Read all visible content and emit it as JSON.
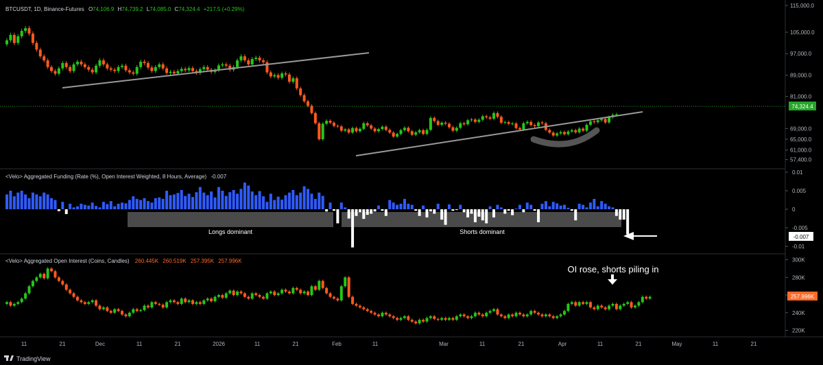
{
  "colors": {
    "background": "#000000",
    "up": "#22ab94",
    "up_bright": "#26c61a",
    "down": "#ff5a1f",
    "funding_pos": "#2f5bff",
    "funding_neg": "#ffffff",
    "axis_text": "#b2b5be",
    "grid": "#2a2a2a",
    "price_tag": "#26a629",
    "oi_tag": "#ff6a2a"
  },
  "footer": {
    "brand": "TradingView",
    "logo_icon": "tradingview-logo"
  },
  "x_axis": {
    "ticks": [
      "11",
      "21",
      "Dec",
      "11",
      "21",
      "2026",
      "11",
      "21",
      "Feb",
      "11",
      "Mar",
      "11",
      "21",
      "Apr",
      "11",
      "21",
      "May",
      "11",
      "21"
    ]
  },
  "price_pane": {
    "header": {
      "symbol": "BTCUSDT, 1D, Binance-Futures",
      "o_label": "O",
      "o_value": "74,106.9",
      "h_label": "H",
      "h_value": "74,739.2",
      "l_label": "L",
      "l_value": "74,085.0",
      "c_label": "C",
      "c_value": "74,324.4",
      "change": "+217.5 (+0.29%)"
    },
    "last_price": "74,324.4"
  },
  "funding_pane": {
    "header": {
      "title": "<Velo> Aggregated Funding (Rate (%), Open Interest Weighted, 8 Hours, Average)",
      "value": "-0.007"
    },
    "last_value": "-0.007",
    "annotations": {
      "longs": "Longs dominant",
      "shorts": "Shorts dominant"
    }
  },
  "oi_pane": {
    "header": {
      "title": "<Velo> Aggregated Open Interest (Coins, Candles)",
      "o": "260.445K",
      "h": "260.519K",
      "l": "257.395K",
      "c": "257.996K"
    },
    "last_value": "257.996K",
    "annotation": "OI rose, shorts piling in"
  },
  "chart_data": [
    {
      "type": "candlestick",
      "ylim": [
        55000,
        115000
      ],
      "y_ticks": [
        "115,000.0",
        "105,000.0",
        "97,000.0",
        "89,000.0",
        "81,000.0",
        "69,000.0",
        "65,000.0",
        "61,000.0",
        "57,400.0"
      ],
      "closes": [
        102000,
        104000,
        101000,
        103500,
        105500,
        106500,
        104500,
        101000,
        98500,
        96000,
        94500,
        92000,
        90500,
        89500,
        91500,
        93500,
        92000,
        90500,
        93000,
        94000,
        93000,
        92000,
        91000,
        90000,
        92500,
        94500,
        93000,
        91500,
        91000,
        90500,
        92000,
        92500,
        90800,
        90000,
        89500,
        92000,
        94000,
        93500,
        91800,
        90500,
        92000,
        93000,
        91500,
        89800,
        90200,
        89600,
        90500,
        91300,
        90800,
        91600,
        90500,
        89800,
        91200,
        92000,
        91000,
        90200,
        90800,
        92600,
        93000,
        92500,
        91000,
        92000,
        94500,
        96000,
        94500,
        93000,
        95000,
        95500,
        94500,
        93800,
        90000,
        88500,
        89000,
        88000,
        89600,
        89200,
        86500,
        87800,
        84000,
        81500,
        79200,
        77500,
        74800,
        71000,
        65000,
        70800,
        71900,
        71200,
        70000,
        69800,
        68200,
        68700,
        67500,
        69200,
        68000,
        68900,
        71000,
        70200,
        69000,
        68000,
        68800,
        69700,
        68500,
        67500,
        66000,
        67000,
        68400,
        69300,
        68000,
        66700,
        67600,
        68400,
        67000,
        68500,
        73000,
        71800,
        70400,
        71200,
        70800,
        69500,
        68200,
        69300,
        71000,
        70600,
        72100,
        72400,
        71500,
        72300,
        73600,
        73200,
        72700,
        74800,
        73400,
        71200,
        71400,
        70800,
        70900,
        69200,
        68700,
        71000,
        71500,
        70300,
        69900,
        71300,
        71000,
        68500,
        67500,
        66400,
        67200,
        67700,
        66900,
        67900,
        68400,
        67600,
        69000,
        68200,
        70400,
        71700,
        71400,
        72100,
        72600,
        71300,
        73300,
        74100,
        74324
      ],
      "trendlines": "two rising support lines and one upper rising line",
      "current_price_line": "74,324.4"
    },
    {
      "type": "bar",
      "name": "Funding rate",
      "ylim": [
        -0.011,
        0.011
      ],
      "y_ticks": [
        "0.01",
        "0.005",
        "0",
        "-0.005",
        "-0.01"
      ],
      "values": [
        0.004,
        0.005,
        0.0035,
        0.0045,
        0.005,
        0.004,
        0.003,
        0.0045,
        0.004,
        0.0035,
        0.0045,
        0.004,
        0.003,
        0.0025,
        -0.0005,
        0.002,
        -0.0013,
        0.0015,
        0.0005,
        0.0008,
        0.0015,
        0.0012,
        0.001,
        0.0018,
        0.0009,
        0.0005,
        0.002,
        0.0014,
        0.0022,
        0.0008,
        0.0015,
        0.0018,
        0.0016,
        0.0025,
        0.0035,
        0.0028,
        0.0025,
        0.003,
        0.0022,
        0.0018,
        0.003,
        0.0032,
        0.0028,
        0.005,
        0.0038,
        0.004,
        0.0044,
        0.0052,
        0.0036,
        0.0042,
        0.0033,
        0.0046,
        0.006,
        0.0045,
        0.0038,
        0.0048,
        0.0032,
        0.006,
        0.005,
        0.0036,
        0.0046,
        0.0052,
        0.0042,
        0.0055,
        0.0072,
        0.0064,
        0.0048,
        0.0038,
        0.0049,
        0.0035,
        0.002,
        0.0042,
        0.0025,
        0.0034,
        0.0026,
        0.0038,
        0.0045,
        0.0052,
        0.0038,
        0.0045,
        0.0062,
        0.0055,
        0.0042,
        0.0028,
        0.0045,
        0.0036,
        -0.0006,
        0.0018,
        -0.0004,
        -0.0038,
        0.0018,
        0.0005,
        -0.0025,
        -0.0103,
        -0.0018,
        -0.0008,
        -0.0026,
        -0.0015,
        -0.0012,
        -0.0006,
        0.001,
        -0.0004,
        -0.0018,
        0.0025,
        0.0018,
        0.0012,
        0.0015,
        0.0028,
        0.0015,
        0.0012,
        -0.0004,
        -0.0018,
        0.001,
        -0.0022,
        -0.0006,
        -0.0012,
        0.0015,
        -0.0028,
        -0.0042,
        0.0013,
        -0.0004,
        -0.0002,
        0.0012,
        -0.0008,
        -0.0022,
        -0.0012,
        -0.0035,
        -0.002,
        -0.003,
        -0.0038,
        0.0008,
        -0.0022,
        0.0012,
        0.0005,
        -0.0012,
        -0.0004,
        -0.0016,
        0.0002,
        0.0012,
        -0.0008,
        0.0018,
        0.0012,
        -0.0004,
        -0.0035,
        0.0015,
        0.0022,
        0.0008,
        0.002,
        0.0016,
        0.001,
        0.0012,
        0.0004,
        -0.0004,
        -0.003,
        0.0015,
        0.0012,
        0.0005,
        0.0018,
        0.0028,
        0.0008,
        0.0022,
        0.0015,
        0.0008,
        0.0005,
        -0.0018,
        -0.0028,
        -0.0028,
        -0.0068
      ],
      "last_value": -0.007
    },
    {
      "type": "candlestick",
      "name": "Aggregated Open Interest",
      "ylim": [
        215,
        302
      ],
      "y_ticks": [
        "300K",
        "280K",
        "260K",
        "240K",
        "220K"
      ],
      "closes": [
        252,
        248,
        250,
        252,
        256,
        262,
        270,
        276,
        280,
        284,
        279,
        290,
        287,
        280,
        276,
        272,
        266,
        262,
        258,
        254,
        252,
        250,
        252,
        254,
        248,
        244,
        246,
        242,
        240,
        244,
        242,
        238,
        236,
        240,
        244,
        242,
        243,
        248,
        246,
        252,
        250,
        249,
        246,
        252,
        254,
        252,
        250,
        256,
        252,
        254,
        250,
        252,
        250,
        254,
        256,
        253,
        258,
        260,
        257,
        262,
        265,
        260,
        264,
        262,
        258,
        256,
        262,
        260,
        258,
        256,
        262,
        264,
        260,
        262,
        266,
        264,
        262,
        268,
        266,
        262,
        264,
        260,
        270,
        266,
        276,
        268,
        262,
        258,
        256,
        254,
        270,
        280,
        258,
        250,
        248,
        246,
        244,
        242,
        240,
        238,
        236,
        240,
        238,
        236,
        234,
        232,
        234,
        236,
        232,
        230,
        228,
        232,
        230,
        234,
        236,
        233,
        232,
        234,
        232,
        234,
        232,
        236,
        238,
        236,
        234,
        236,
        240,
        238,
        236,
        240,
        242,
        244,
        238,
        236,
        234,
        238,
        236,
        240,
        238,
        236,
        238,
        242,
        240,
        238,
        236,
        238,
        236,
        234,
        236,
        238,
        242,
        250,
        252,
        248,
        252,
        250,
        252,
        246,
        244,
        248,
        246,
        244,
        248,
        250,
        244,
        248,
        250,
        252,
        246,
        248,
        252,
        258,
        256,
        258
      ]
    }
  ]
}
